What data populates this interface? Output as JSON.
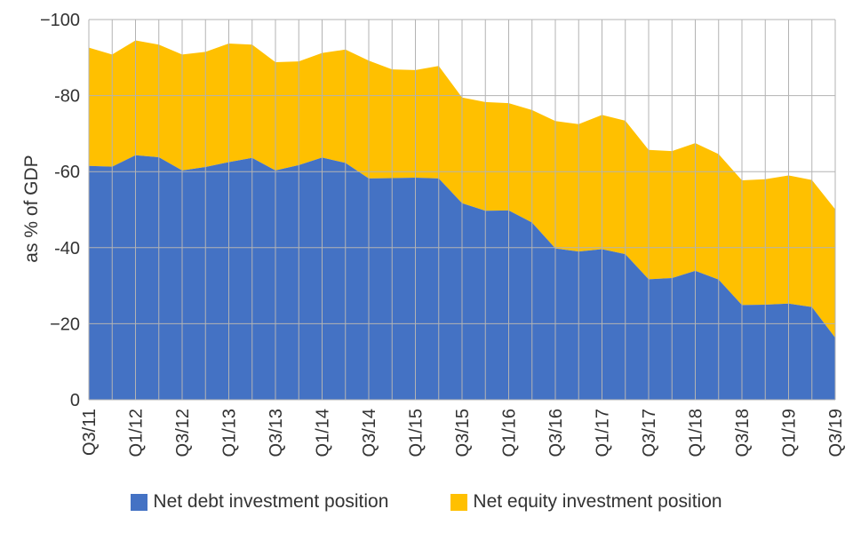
{
  "chart_data": {
    "type": "area",
    "stacked": true,
    "title": "",
    "xlabel": "",
    "ylabel": "as % of GDP",
    "ylim": [
      0,
      -100
    ],
    "y_ticks": [
      0,
      -20,
      -40,
      -60,
      -80,
      -100
    ],
    "y_tick_labels": [
      "0",
      "−20",
      "-40",
      "-60",
      "-80",
      "−100"
    ],
    "grid": true,
    "legend_position": "bottom",
    "x": [
      "Q3/11",
      "Q4/11",
      "Q1/12",
      "Q2/12",
      "Q3/12",
      "Q4/12",
      "Q1/13",
      "Q2/13",
      "Q3/13",
      "Q4/13",
      "Q1/14",
      "Q2/14",
      "Q3/14",
      "Q4/14",
      "Q1/15",
      "Q2/15",
      "Q3/15",
      "Q4/15",
      "Q1/16",
      "Q2/16",
      "Q3/16",
      "Q4/16",
      "Q1/17",
      "Q2/17",
      "Q3/17",
      "Q4/17",
      "Q1/18",
      "Q2/18",
      "Q3/18",
      "Q4/18",
      "Q1/19",
      "Q2/19",
      "Q3/19"
    ],
    "x_tick_labels": [
      "Q3/11",
      "Q1/12",
      "Q3/12",
      "Q1/13",
      "Q3/13",
      "Q1/14",
      "Q3/14",
      "Q1/15",
      "Q3/15",
      "Q1/16",
      "Q3/16",
      "Q1/17",
      "Q3/17",
      "Q1/18",
      "Q3/18",
      "Q1/19",
      "Q3/19"
    ],
    "series": [
      {
        "name": "Net debt investment position",
        "color": "#4472c4",
        "values": [
          -61.5,
          -61.3,
          -64.3,
          -63.8,
          -60.3,
          -61.2,
          -62.5,
          -63.6,
          -60.3,
          -61.7,
          -63.7,
          -62.3,
          -58.2,
          -58.3,
          -58.4,
          -58.2,
          -51.7,
          -49.7,
          -49.8,
          -46.6,
          -39.8,
          -39.0,
          -39.6,
          -38.3,
          -31.7,
          -32.0,
          -33.9,
          -31.6,
          -24.9,
          -25.0,
          -25.3,
          -24.4,
          -16.3
        ]
      },
      {
        "name": "Net equity investment position",
        "color": "#ffc000",
        "values": [
          -31.1,
          -29.5,
          -30.2,
          -29.6,
          -30.5,
          -30.3,
          -31.2,
          -29.8,
          -28.5,
          -27.3,
          -27.5,
          -29.8,
          -31.0,
          -28.6,
          -28.3,
          -29.6,
          -27.8,
          -28.6,
          -28.2,
          -29.6,
          -33.5,
          -33.5,
          -35.3,
          -35.1,
          -34.0,
          -33.4,
          -33.6,
          -33.0,
          -32.8,
          -33.0,
          -33.7,
          -33.4,
          -33.8
        ]
      }
    ]
  }
}
